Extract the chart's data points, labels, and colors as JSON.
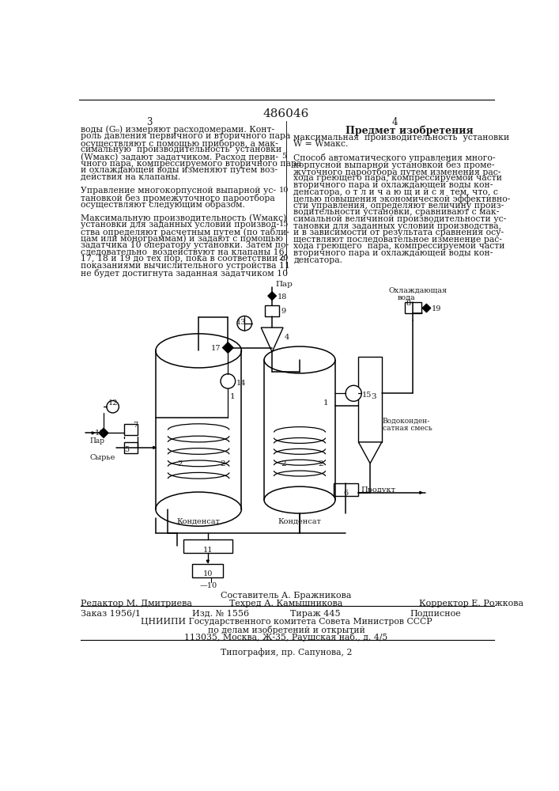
{
  "patent_number": "486046",
  "page_cols": [
    "3",
    "4"
  ],
  "col1_text": [
    "воды (G₀) измеряют расходомерами. Конт-",
    "роль давления первичного и вторичного пара",
    "осуществляют с помощью приборов, а мак-",
    "симальную  производительность  установки",
    "(Wмакс) задают задатчиком. Расход перви-",
    "чного пара, компрессируемого вторичного пара",
    "и охлаждающей воды изменяют путем воз-",
    "действия на клапаны.",
    "",
    "Управление многокорпусной выпарной ус-",
    "тановкой без промежуточного пароотбора",
    "осуществляют следующим образом.",
    "",
    "Максимальную производительность (Wмакс)",
    "установки для заданных условий производ-",
    "ства определяют расчетным путем (по табли-",
    "цам или монограммам) и задают с помощью",
    "задатчика 10 оператору установки. Затем по-",
    "следовательно  воздействуют на клапаны 16,",
    "17, 18 и 19 до тех пор, пока в соответствии с",
    "показаниями вычислительного устройства 11",
    "не будет достигнута заданная задатчиком 10"
  ],
  "col2_header": "Предмет изобретения",
  "col2_text": [
    "максимальная  производительность  установки",
    "W = Wмакс.",
    "",
    "Способ автоматического управления много-",
    "корпусной выпарной установкой без проме-",
    "жуточного пароотбора путем изменения рас-",
    "хода греющего пара, компрессируемой части",
    "вторичного пара и охлаждающей воды кон-",
    "денсатора, о т л и ч а ю щ и й с я  тем, что, с",
    "целью повышения экономической эффективно-",
    "сти управления, определяют величину произ-",
    "водительности установки, сравнивают с мак-",
    "симальной величиной производительности ус-",
    "тановки для заданных условий производства,",
    "и в зависимости от результата сравнения осу-",
    "ществляют последовательное изменение рас-",
    "хода греющего  пара, компрессируемой части",
    "вторичного пара и охлаждающей воды кон-",
    "денсатора."
  ],
  "line_numbers_right": [
    "5",
    "10",
    "15",
    "20"
  ],
  "footer_composer": "Составитель А. Бражникова",
  "footer_editor": "Редактор М. Дмитриева",
  "footer_tech": "Техред А. Камышникова",
  "footer_corrector": "Корректор Е. Рожкова",
  "footer_order": "Заказ 1956/1",
  "footer_pub": "Изд. № 1556",
  "footer_print": "Тираж 445",
  "footer_sign": "Подписное",
  "footer_org": "ЦНИИПИ Государственного комитета Совета Министров СССР",
  "footer_dept": "по делам изобретений и открытий",
  "footer_addr": "113035, Москва, Ж-35, Раушская наб., д. 4/5",
  "footer_print2": "Типография, пр. Сапунова, 2",
  "bg_color": "#ffffff",
  "text_color": "#1a1a1a"
}
